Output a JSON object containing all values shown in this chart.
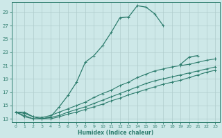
{
  "xlabel": "Humidex (Indice chaleur)",
  "bg_color": "#cde8e8",
  "line_color": "#2e7d6e",
  "grid_color": "#b0cccc",
  "xlim": [
    -0.5,
    23.5
  ],
  "ylim": [
    12.5,
    30.5
  ],
  "yticks": [
    13,
    15,
    17,
    19,
    21,
    23,
    25,
    27,
    29
  ],
  "xticks": [
    0,
    1,
    2,
    3,
    4,
    5,
    6,
    7,
    8,
    9,
    10,
    11,
    12,
    13,
    14,
    15,
    16,
    17,
    18,
    19,
    20,
    21,
    22,
    23
  ],
  "line1_x": [
    0,
    1,
    2,
    3,
    4,
    5,
    6,
    7,
    8,
    9,
    10,
    11,
    12,
    13,
    14,
    15,
    16,
    17,
    18,
    19,
    20,
    21,
    22,
    23
  ],
  "line1_y": [
    14.0,
    14.0,
    13.3,
    13.0,
    13.3,
    14.8,
    16.5,
    18.5,
    21.5,
    22.5,
    24.0,
    26.0,
    28.2,
    28.3,
    30.0,
    29.8,
    28.8,
    27.0,
    null,
    21.2,
    22.3,
    22.5,
    null,
    22.0
  ],
  "line2_x": [
    0,
    1,
    2,
    3,
    4,
    5,
    6,
    7,
    8,
    9,
    10,
    11,
    12,
    13,
    14,
    15,
    16,
    17,
    18,
    19,
    20,
    21,
    22,
    23
  ],
  "line2_y": [
    14.0,
    13.8,
    13.3,
    13.2,
    13.5,
    14.0,
    14.5,
    15.0,
    15.5,
    16.2,
    16.8,
    17.3,
    18.0,
    18.5,
    19.2,
    19.7,
    20.2,
    20.5,
    20.8,
    21.0,
    21.2,
    21.5,
    21.8,
    22.0
  ],
  "line3_x": [
    0,
    1,
    2,
    3,
    4,
    5,
    6,
    7,
    8,
    9,
    10,
    11,
    12,
    13,
    14,
    15,
    16,
    17,
    18,
    19,
    20,
    21,
    22,
    23
  ],
  "line3_y": [
    14.0,
    13.5,
    13.0,
    13.0,
    13.2,
    13.5,
    14.0,
    14.4,
    14.8,
    15.3,
    15.8,
    16.3,
    16.8,
    17.3,
    17.8,
    18.3,
    18.7,
    19.0,
    19.3,
    19.6,
    19.9,
    20.2,
    20.5,
    20.8
  ],
  "line4_x": [
    0,
    1,
    2,
    3,
    4,
    5,
    6,
    7,
    8,
    9,
    10,
    11,
    12,
    13,
    14,
    15,
    16,
    17,
    18,
    19,
    20,
    21,
    22,
    23
  ],
  "line4_y": [
    14.0,
    13.3,
    13.0,
    13.0,
    13.0,
    13.3,
    13.7,
    14.0,
    14.4,
    14.8,
    15.2,
    15.7,
    16.1,
    16.6,
    17.0,
    17.4,
    17.8,
    18.2,
    18.5,
    18.8,
    19.2,
    19.6,
    20.0,
    20.3
  ]
}
